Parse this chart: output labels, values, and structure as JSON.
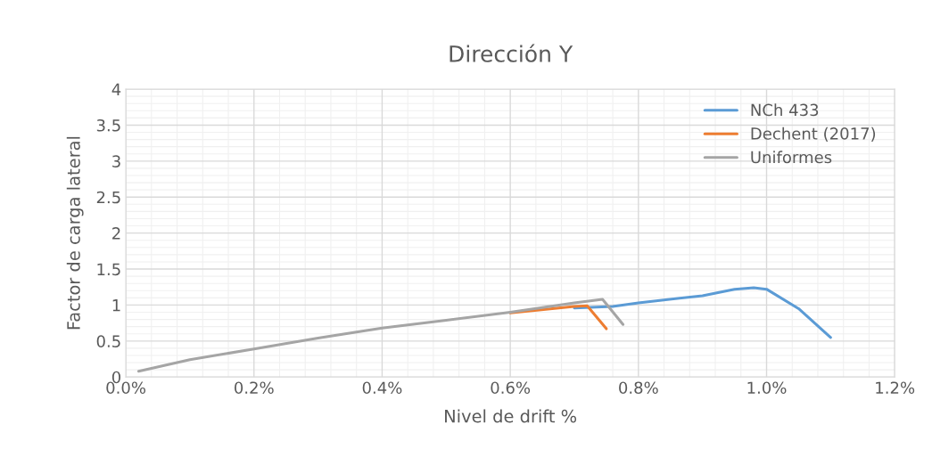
{
  "chart_data": {
    "type": "line",
    "title": "Dirección Y",
    "xlabel": "Nivel de drift %",
    "ylabel": "Factor de carga lateral",
    "series": [
      {
        "name": "NCh 433",
        "color": "#5b9bd5",
        "x": [
          0.7,
          0.76,
          0.8,
          0.9,
          0.95,
          0.98,
          1.0,
          1.05,
          1.1
        ],
        "values": [
          0.96,
          0.98,
          1.03,
          1.13,
          1.22,
          1.24,
          1.22,
          0.95,
          0.55
        ]
      },
      {
        "name": "Dechent (2017)",
        "color": "#ed7d31",
        "x": [
          0.6,
          0.7,
          0.72,
          0.75
        ],
        "values": [
          0.89,
          0.98,
          0.99,
          0.67
        ]
      },
      {
        "name": "Uniformes",
        "color": "#a5a5a5",
        "x": [
          0.02,
          0.1,
          0.2,
          0.3,
          0.4,
          0.5,
          0.6,
          0.7,
          0.744,
          0.776
        ],
        "values": [
          0.08,
          0.24,
          0.39,
          0.54,
          0.68,
          0.79,
          0.9,
          1.03,
          1.08,
          0.73
        ]
      }
    ],
    "xlim": [
      0,
      1.2
    ],
    "xticks": [
      {
        "value": 0,
        "label": "0.0%"
      },
      {
        "value": 0.2,
        "label": "0.2%"
      },
      {
        "value": 0.4,
        "label": "0.4%"
      },
      {
        "value": 0.6,
        "label": "0.6%"
      },
      {
        "value": 0.8,
        "label": "0.8%"
      },
      {
        "value": 1.0,
        "label": "1.0%"
      },
      {
        "value": 1.2,
        "label": "1.2%"
      }
    ],
    "ylim": [
      0,
      4
    ],
    "yticks": [
      0,
      0.5,
      1,
      1.5,
      2,
      2.5,
      3,
      3.5,
      4
    ],
    "grid": true,
    "legend": "top right",
    "marker": "none",
    "line_style": "solid"
  }
}
